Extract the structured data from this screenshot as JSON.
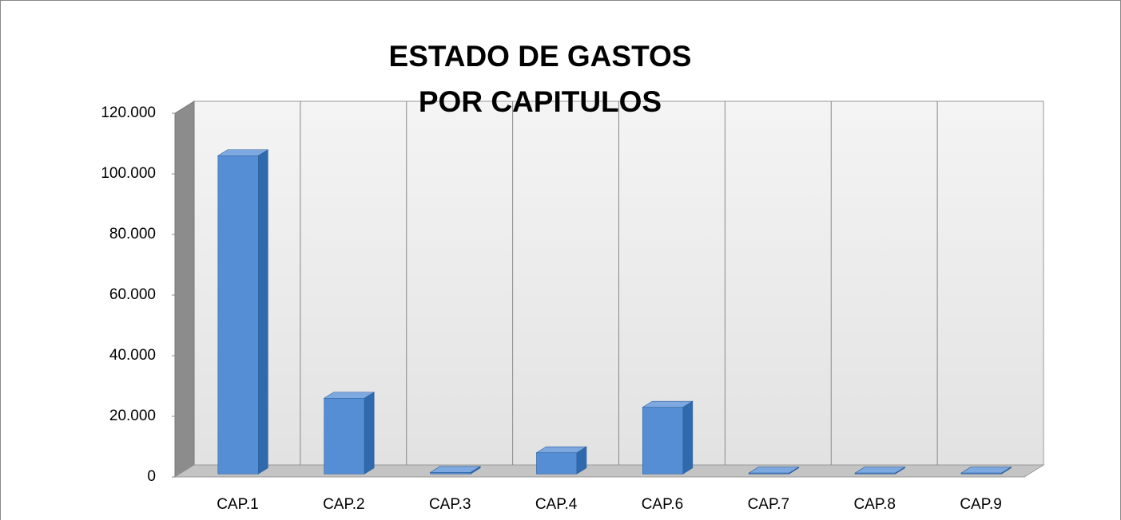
{
  "chart_data": {
    "type": "bar3d",
    "title": [
      "ESTADO DE GASTOS",
      "POR CAPITULOS"
    ],
    "categories": [
      "CAP.1",
      "CAP.2",
      "CAP.3",
      "CAP.4",
      "CAP.6",
      "CAP.7",
      "CAP.8",
      "CAP.9"
    ],
    "values": [
      105000,
      25000,
      500,
      7000,
      22000,
      300,
      300,
      300
    ],
    "color": "#558ed5",
    "ylim": [
      0,
      120000
    ],
    "yticks": [
      0,
      {
        "value": 20000,
        "label": "20.000"
      },
      {
        "value": 40000,
        "label": "40.000"
      },
      {
        "value": 60000,
        "label": "60.000"
      },
      {
        "value": 80000,
        "label": "80.000"
      },
      {
        "value": 100000,
        "label": "100.000"
      },
      {
        "value": 120000,
        "label": "120.000"
      }
    ],
    "grid": false
  }
}
